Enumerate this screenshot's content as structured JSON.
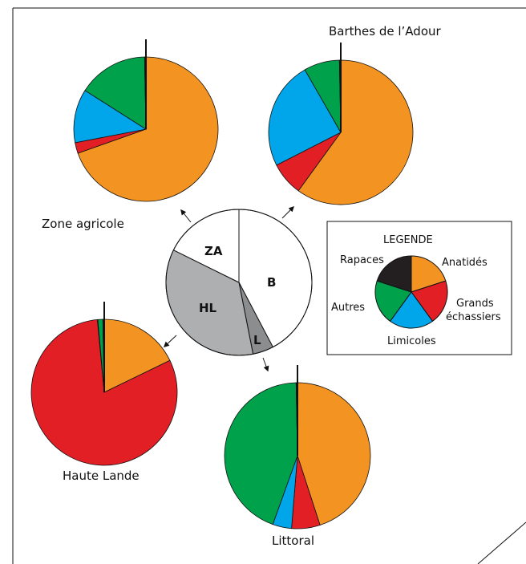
{
  "colors": {
    "anatides": "#F39322",
    "grands_echassiers": "#E31F26",
    "limicoles": "#00A6E9",
    "autres": "#00A14B",
    "rapaces": "#231F20",
    "outline": "#111111",
    "sector_B": "#FFFFFF",
    "sector_L": "#8C8D8F",
    "sector_HL": "#ADAFB1",
    "sector_ZA": "#FFFFFF"
  },
  "chart_data": [
    {
      "type": "pie",
      "name": "Zone agricole",
      "label": "Zone agricole",
      "slices": [
        {
          "category": "Anatidés",
          "value": 69.6
        },
        {
          "category": "Grands échassiers",
          "value": 2.4
        },
        {
          "category": "Limicoles",
          "value": 12.0
        },
        {
          "category": "Autres",
          "value": 15.7
        },
        {
          "category": "Rapaces",
          "value": 0.3
        }
      ]
    },
    {
      "type": "pie",
      "name": "Barthes de l'Adour",
      "label": "Barthes de l’Adour",
      "slices": [
        {
          "category": "Anatidés",
          "value": 60.0
        },
        {
          "category": "Grands échassiers",
          "value": 7.5
        },
        {
          "category": "Limicoles",
          "value": 24.2
        },
        {
          "category": "Autres",
          "value": 8.0
        },
        {
          "category": "Rapaces",
          "value": 0.3
        }
      ]
    },
    {
      "type": "pie",
      "name": "Haute Lande",
      "label": "Haute Lande",
      "slices": [
        {
          "category": "Anatidés",
          "value": 17.8
        },
        {
          "category": "Grands échassiers",
          "value": 80.7
        },
        {
          "category": "Limicoles",
          "value": 0.1
        },
        {
          "category": "Autres",
          "value": 1.1
        },
        {
          "category": "Rapaces",
          "value": 0.3
        }
      ]
    },
    {
      "type": "pie",
      "name": "Littoral",
      "label": "Littoral",
      "slices": [
        {
          "category": "Anatidés",
          "value": 45.0
        },
        {
          "category": "Grands échassiers",
          "value": 6.3
        },
        {
          "category": "Limicoles",
          "value": 4.2
        },
        {
          "category": "Autres",
          "value": 44.2
        },
        {
          "category": "Rapaces",
          "value": 0.3
        }
      ]
    },
    {
      "type": "pie",
      "name": "Répartition par zone",
      "slices": [
        {
          "category": "B",
          "label": "B",
          "value": 42.3
        },
        {
          "category": "L",
          "label": "L",
          "value": 4.6
        },
        {
          "category": "HL",
          "label": "HL",
          "value": 35.4
        },
        {
          "category": "ZA",
          "label": "ZA",
          "value": 17.7
        }
      ]
    },
    {
      "type": "pie",
      "name": "Legend",
      "slices": [
        {
          "category": "Anatidés",
          "value": 20
        },
        {
          "category": "Grands échassiers",
          "value": 20
        },
        {
          "category": "Limicoles",
          "value": 20
        },
        {
          "category": "Autres",
          "value": 20
        },
        {
          "category": "Rapaces",
          "value": 20
        }
      ]
    }
  ],
  "legend": {
    "title": "LEGENDE",
    "items": [
      {
        "key": "rapaces",
        "label": "Rapaces"
      },
      {
        "key": "anatides",
        "label": "Anatidés"
      },
      {
        "key": "autres",
        "label": "Autres"
      },
      {
        "key": "grands_echassiers",
        "label_line1": "Grands",
        "label_line2": "échassiers"
      },
      {
        "key": "limicoles",
        "label": "Limicoles"
      }
    ]
  }
}
